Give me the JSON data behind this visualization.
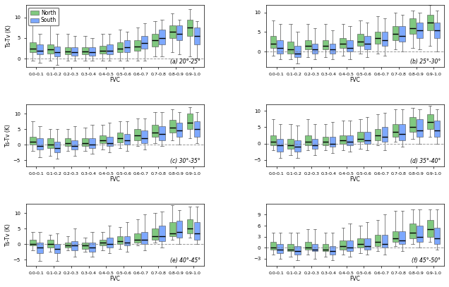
{
  "fvc_labels": [
    "0.0-0.1",
    "0.1-0.2",
    "0.2-0.3",
    "0.3-0.4",
    "0.4-0.5",
    "0.5-0.6",
    "0.6-0.7",
    "0.7-0.8",
    "0.8-0.9",
    "0.9-1.0"
  ],
  "subplot_titles": [
    "(a) 20°-25°",
    "(b) 25°-30°",
    "(c) 30°-35°",
    "(d) 35°-40°",
    "(e) 40°-45°",
    "(f) 45°-50°"
  ],
  "north_color": "#6abf69",
  "south_color": "#6699ff",
  "ylabel": "Ts-Tv (K)",
  "xlabel": "FVC",
  "panels": [
    {
      "title": "(a) 20°-25°",
      "ylim": [
        -2,
        13
      ],
      "yticks": [
        0,
        5,
        10
      ],
      "north": {
        "whislo": [
          -0.5,
          -0.5,
          -0.5,
          -0.5,
          -0.5,
          -0.5,
          -0.5,
          0.5,
          1.5,
          0.5
        ],
        "q1": [
          1.5,
          1.2,
          1.0,
          1.0,
          1.2,
          1.5,
          2.0,
          3.0,
          5.0,
          5.5
        ],
        "med": [
          2.5,
          2.2,
          1.8,
          1.8,
          2.0,
          2.5,
          3.0,
          4.5,
          6.5,
          7.5
        ],
        "q3": [
          4.0,
          3.5,
          2.8,
          2.8,
          3.2,
          4.0,
          4.5,
          6.0,
          8.0,
          9.5
        ],
        "whishi": [
          9.0,
          8.0,
          6.0,
          5.5,
          6.0,
          7.0,
          7.5,
          9.0,
          11.0,
          12.0
        ]
      },
      "south": {
        "whislo": [
          -1.0,
          -1.5,
          -0.5,
          -0.5,
          -0.5,
          -0.5,
          -0.5,
          0.5,
          1.0,
          0.0
        ],
        "q1": [
          1.0,
          0.5,
          0.8,
          0.8,
          1.0,
          1.5,
          2.5,
          3.5,
          4.5,
          3.5
        ],
        "med": [
          2.0,
          1.5,
          1.5,
          1.5,
          2.0,
          2.8,
          3.8,
          5.0,
          6.0,
          5.5
        ],
        "q3": [
          3.5,
          3.0,
          2.8,
          2.8,
          3.5,
          4.5,
          5.5,
          7.0,
          8.0,
          7.5
        ],
        "whishi": [
          6.0,
          6.0,
          5.5,
          5.0,
          6.0,
          6.5,
          8.5,
          9.5,
          9.5,
          9.0
        ]
      }
    },
    {
      "title": "(b) 25°-30°",
      "ylim": [
        -4,
        12
      ],
      "yticks": [
        0,
        5,
        10
      ],
      "north": {
        "whislo": [
          -1.0,
          -2.0,
          -1.5,
          -1.5,
          -1.0,
          -0.5,
          -0.5,
          0.5,
          1.0,
          1.5
        ],
        "q1": [
          1.0,
          -0.5,
          0.5,
          0.5,
          1.0,
          1.5,
          2.0,
          3.0,
          4.5,
          5.5
        ],
        "med": [
          2.0,
          0.5,
          1.5,
          1.5,
          2.0,
          2.5,
          3.5,
          4.5,
          6.0,
          7.5
        ],
        "q3": [
          4.0,
          2.5,
          3.0,
          3.0,
          3.5,
          4.5,
          5.0,
          6.5,
          8.5,
          9.5
        ],
        "whishi": [
          8.0,
          7.0,
          7.0,
          7.0,
          7.0,
          8.0,
          9.0,
          10.0,
          10.5,
          12.0
        ]
      },
      "south": {
        "whislo": [
          -2.0,
          -3.0,
          -2.0,
          -2.0,
          -2.0,
          -1.5,
          -1.0,
          0.0,
          0.5,
          0.0
        ],
        "q1": [
          -0.5,
          -1.5,
          -0.5,
          -0.5,
          0.0,
          0.5,
          1.5,
          2.5,
          3.5,
          3.5
        ],
        "med": [
          1.0,
          -0.5,
          0.5,
          0.5,
          1.0,
          2.0,
          3.0,
          4.0,
          5.5,
          5.5
        ],
        "q3": [
          3.0,
          1.5,
          2.0,
          2.0,
          3.0,
          4.0,
          5.0,
          6.5,
          7.5,
          7.5
        ],
        "whishi": [
          7.0,
          5.0,
          6.0,
          5.5,
          6.5,
          7.5,
          8.5,
          9.5,
          10.0,
          10.5
        ]
      }
    },
    {
      "title": "(c) 30°-35°",
      "ylim": [
        -7,
        13
      ],
      "yticks": [
        -5,
        0,
        5,
        10
      ],
      "north": {
        "whislo": [
          -2.0,
          -3.5,
          -2.0,
          -2.0,
          -1.5,
          -1.0,
          -0.5,
          0.5,
          1.5,
          2.0
        ],
        "q1": [
          0.0,
          -1.0,
          -0.5,
          -0.5,
          0.5,
          0.8,
          1.5,
          2.5,
          4.0,
          5.0
        ],
        "med": [
          1.0,
          0.0,
          0.5,
          0.5,
          1.5,
          2.0,
          3.0,
          4.0,
          5.5,
          7.0
        ],
        "q3": [
          2.5,
          2.0,
          2.0,
          2.0,
          3.0,
          4.0,
          5.0,
          6.5,
          8.0,
          10.0
        ],
        "whishi": [
          7.5,
          5.0,
          5.0,
          5.5,
          6.5,
          7.5,
          8.5,
          10.5,
          11.5,
          12.0
        ]
      },
      "south": {
        "whislo": [
          -4.0,
          -4.5,
          -3.5,
          -3.0,
          -2.5,
          -2.0,
          -1.5,
          -0.5,
          0.0,
          0.5
        ],
        "q1": [
          -1.5,
          -2.5,
          -1.5,
          -1.0,
          -0.5,
          0.0,
          0.5,
          1.5,
          2.5,
          2.5
        ],
        "med": [
          -0.5,
          -1.0,
          -0.5,
          0.0,
          0.5,
          1.5,
          2.0,
          3.5,
          4.5,
          5.0
        ],
        "q3": [
          2.0,
          1.0,
          1.5,
          2.0,
          2.5,
          3.5,
          4.5,
          6.0,
          7.0,
          7.5
        ],
        "whishi": [
          6.0,
          5.0,
          6.0,
          6.5,
          7.0,
          7.5,
          8.5,
          10.5,
          10.5,
          10.5
        ]
      }
    },
    {
      "title": "(d) 35°-40°",
      "ylim": [
        -7,
        12
      ],
      "yticks": [
        -5,
        0,
        5,
        10
      ],
      "north": {
        "whislo": [
          -2.0,
          -3.5,
          -2.0,
          -2.0,
          -2.0,
          -1.5,
          -0.5,
          0.5,
          1.5,
          2.0
        ],
        "q1": [
          -0.5,
          -1.5,
          -0.5,
          -0.5,
          0.0,
          0.5,
          1.0,
          2.0,
          3.5,
          4.5
        ],
        "med": [
          0.5,
          -0.5,
          0.5,
          0.5,
          1.0,
          1.5,
          2.5,
          3.5,
          5.0,
          6.5
        ],
        "q3": [
          2.5,
          1.5,
          2.5,
          2.0,
          2.5,
          3.5,
          4.5,
          6.0,
          8.0,
          9.0
        ],
        "whishi": [
          7.5,
          6.0,
          7.5,
          6.0,
          7.0,
          7.5,
          9.0,
          10.5,
          11.0,
          11.5
        ]
      },
      "south": {
        "whislo": [
          -4.5,
          -4.5,
          -3.5,
          -3.0,
          -2.5,
          -2.0,
          -2.0,
          -1.0,
          0.0,
          0.0
        ],
        "q1": [
          -2.5,
          -2.5,
          -1.5,
          -1.0,
          -0.5,
          0.0,
          0.5,
          1.0,
          2.0,
          2.0
        ],
        "med": [
          -0.5,
          -1.0,
          -0.5,
          0.0,
          0.5,
          1.0,
          2.0,
          3.0,
          4.0,
          4.0
        ],
        "q3": [
          1.5,
          1.0,
          1.5,
          2.0,
          2.5,
          3.5,
          5.0,
          6.0,
          7.5,
          7.0
        ],
        "whishi": [
          6.0,
          5.5,
          6.0,
          6.5,
          7.0,
          8.0,
          9.5,
          10.5,
          10.5,
          10.5
        ]
      }
    },
    {
      "title": "(e) 40°-45°",
      "ylim": [
        -7,
        13
      ],
      "yticks": [
        -5,
        0,
        5,
        10
      ],
      "north": {
        "whislo": [
          -2.0,
          -2.5,
          -2.0,
          -2.5,
          -2.0,
          -1.5,
          -0.5,
          0.5,
          1.5,
          2.0
        ],
        "q1": [
          -0.5,
          -1.0,
          -1.0,
          -1.5,
          -0.5,
          0.0,
          0.5,
          1.5,
          2.5,
          3.5
        ],
        "med": [
          0.0,
          0.0,
          -0.5,
          -0.5,
          0.5,
          1.0,
          1.5,
          2.5,
          3.5,
          5.0
        ],
        "q3": [
          1.5,
          1.5,
          0.5,
          0.5,
          1.5,
          2.5,
          3.5,
          5.0,
          7.0,
          8.0
        ],
        "whishi": [
          4.0,
          3.0,
          2.5,
          2.0,
          4.0,
          5.5,
          8.0,
          10.0,
          12.5,
          12.0
        ]
      },
      "south": {
        "whislo": [
          -5.5,
          -5.5,
          -4.0,
          -4.0,
          -3.0,
          -2.5,
          -2.0,
          -1.0,
          0.0,
          0.0
        ],
        "q1": [
          -3.0,
          -3.0,
          -2.0,
          -2.5,
          -1.0,
          -0.5,
          0.0,
          1.0,
          2.0,
          1.5
        ],
        "med": [
          -1.0,
          -1.5,
          -0.5,
          -1.0,
          0.0,
          0.5,
          1.5,
          2.5,
          4.0,
          3.5
        ],
        "q3": [
          0.5,
          0.0,
          1.0,
          0.5,
          2.0,
          2.5,
          4.0,
          6.0,
          7.5,
          7.0
        ],
        "whishi": [
          4.0,
          3.5,
          5.0,
          4.0,
          6.0,
          7.0,
          9.5,
          10.5,
          11.0,
          12.0
        ]
      }
    },
    {
      "title": "(f) 45°-50°",
      "ylim": [
        -5,
        12
      ],
      "yticks": [
        -3,
        0,
        3,
        6,
        9
      ],
      "north": {
        "whislo": [
          -2.0,
          -2.5,
          -2.0,
          -2.5,
          -2.0,
          -1.5,
          -1.0,
          0.5,
          1.0,
          1.5
        ],
        "q1": [
          -0.5,
          -1.0,
          -0.5,
          -1.0,
          -0.5,
          0.0,
          0.5,
          1.5,
          2.5,
          3.0
        ],
        "med": [
          0.0,
          -0.5,
          0.0,
          -0.5,
          0.5,
          1.0,
          1.5,
          2.5,
          4.0,
          5.0
        ],
        "q3": [
          1.5,
          1.0,
          1.5,
          1.0,
          2.0,
          2.5,
          3.5,
          4.5,
          6.5,
          7.5
        ],
        "whishi": [
          4.0,
          4.0,
          5.0,
          4.0,
          5.5,
          6.0,
          7.5,
          10.0,
          10.5,
          10.5
        ]
      },
      "south": {
        "whislo": [
          -3.0,
          -3.5,
          -3.0,
          -3.5,
          -2.5,
          -2.0,
          -2.0,
          -1.0,
          0.0,
          -0.5
        ],
        "q1": [
          -1.5,
          -2.0,
          -1.0,
          -2.0,
          -1.0,
          -0.5,
          0.0,
          1.0,
          1.5,
          1.0
        ],
        "med": [
          -0.5,
          -1.0,
          -0.5,
          -1.0,
          0.0,
          0.5,
          1.0,
          2.0,
          3.0,
          2.5
        ],
        "q3": [
          1.0,
          0.5,
          1.0,
          0.5,
          2.0,
          2.5,
          3.5,
          4.5,
          6.0,
          5.5
        ],
        "whishi": [
          4.0,
          4.0,
          5.0,
          4.0,
          6.5,
          7.0,
          9.0,
          10.0,
          10.5,
          10.5
        ]
      }
    }
  ]
}
